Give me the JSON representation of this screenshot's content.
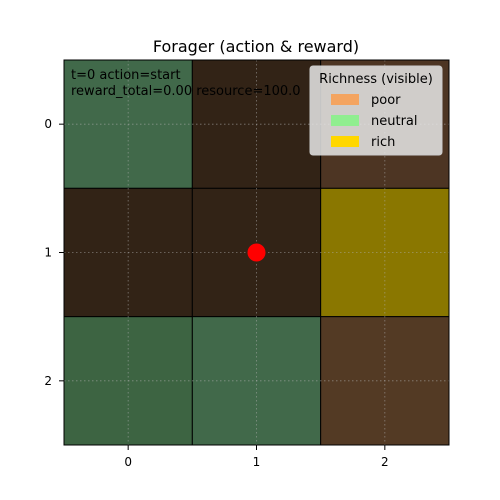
{
  "title": "Forager (action & reward)",
  "overlay": {
    "line1": "t=0  action=start",
    "line2": "reward_total=0.00  resource=100.0"
  },
  "axes": {
    "x_ticks": [
      "0",
      "1",
      "2"
    ],
    "y_ticks": [
      "0",
      "1",
      "2"
    ],
    "grid": true
  },
  "legend": {
    "title": "Richness (visible)",
    "placement": "top-right",
    "entries": [
      {
        "label": "poor",
        "color": "#f4a460"
      },
      {
        "label": "neutral",
        "color": "#90ee90"
      },
      {
        "label": "rich",
        "color": "#ffd700"
      }
    ]
  },
  "grid": {
    "rows": 3,
    "cols": 3,
    "cells": [
      [
        "#41694a",
        "#322316",
        "#4d3523"
      ],
      [
        "#322316",
        "#322316",
        "#8a7700"
      ],
      [
        "#3d6442",
        "#41694a",
        "#533a24"
      ]
    ]
  },
  "agent": {
    "row": 1,
    "col": 1,
    "color": "#ff0000"
  }
}
